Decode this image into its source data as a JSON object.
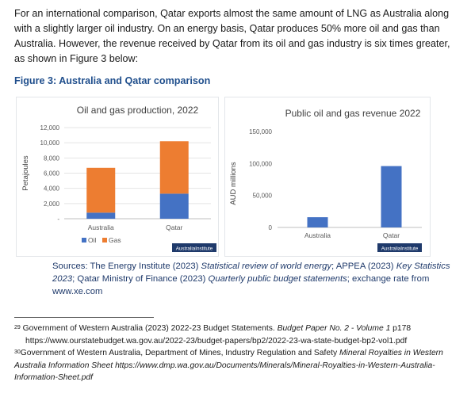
{
  "paragraph": "For an international comparison, Qatar exports almost the same amount of LNG as Australia along with a slightly larger oil industry. On an energy basis, Qatar produces 50% more oil and gas than Australia. However, the revenue received by Qatar from its oil and gas industry is six times greater, as shown in Figure 3 below:",
  "figure_title": "Figure 3: Australia and Qatar comparison",
  "watermark": "AustraliaInstitute",
  "chart_data": [
    {
      "type": "bar",
      "stacked": true,
      "title": "Oil and gas production, 2022",
      "ylabel": "Petajoules",
      "xlabel": "",
      "categories": [
        "Australia",
        "Qatar"
      ],
      "series": [
        {
          "name": "Oil",
          "values": [
            800,
            3300
          ],
          "color": "#4472c4"
        },
        {
          "name": "Gas",
          "values": [
            5900,
            6900
          ],
          "color": "#ed7d31"
        }
      ],
      "ylim": [
        0,
        12000
      ],
      "yticks": [
        0,
        2000,
        4000,
        6000,
        8000,
        10000,
        12000
      ],
      "ytick_labels": [
        "-",
        "2,000",
        "4,000",
        "6,000",
        "8,000",
        "10,000",
        "12,000"
      ],
      "grid": true,
      "legend": "bottom"
    },
    {
      "type": "bar",
      "title": "Public oil and gas revenue 2022",
      "ylabel": "AUD millions",
      "xlabel": "",
      "categories": [
        "Australia",
        "Qatar"
      ],
      "series": [
        {
          "values": [
            16000,
            96000
          ],
          "color": "#4472c4"
        }
      ],
      "ylim": [
        0,
        150000
      ],
      "yticks": [
        0,
        50000,
        100000,
        150000
      ],
      "ytick_labels": [
        "0",
        "50,000",
        "100,000",
        "150,000"
      ],
      "grid": false,
      "legend": "none"
    }
  ],
  "sources": {
    "prefix": "Sources: The Energy Institute (2023) ",
    "src1_title": "Statistical review of world energy",
    "mid1": "; APPEA (2023) ",
    "src2_title": "Key Statistics 2023",
    "mid2": "; Qatar Ministry of Finance (2023) ",
    "src3_title": "Quarterly public budget statements",
    "suffix": "; exchange rate from www.xe.com"
  },
  "footnotes": {
    "fn29_num": "29",
    "fn29_text": " Government of Western Australia (2023) 2022-23 Budget Statements. ",
    "fn29_title": "Budget Paper No. 2 - Volume 1",
    "fn29_page": " p178",
    "fn29_url": "https://www.ourstatebudget.wa.gov.au/2022-23/budget-papers/bp2/2022-23-wa-state-budget-bp2-vol1.pdf",
    "fn30_num": "30",
    "fn30_text": "Government of Western Australia, Department of Mines, Industry Regulation and Safety ",
    "fn30_title": "Mineral Royalties in Western Australia Information Sheet",
    "fn30_url": " https://www.dmp.wa.gov.au/Documents/Minerals/Mineral-Royalties-in-Western-Australia-Information-Sheet.pdf"
  }
}
